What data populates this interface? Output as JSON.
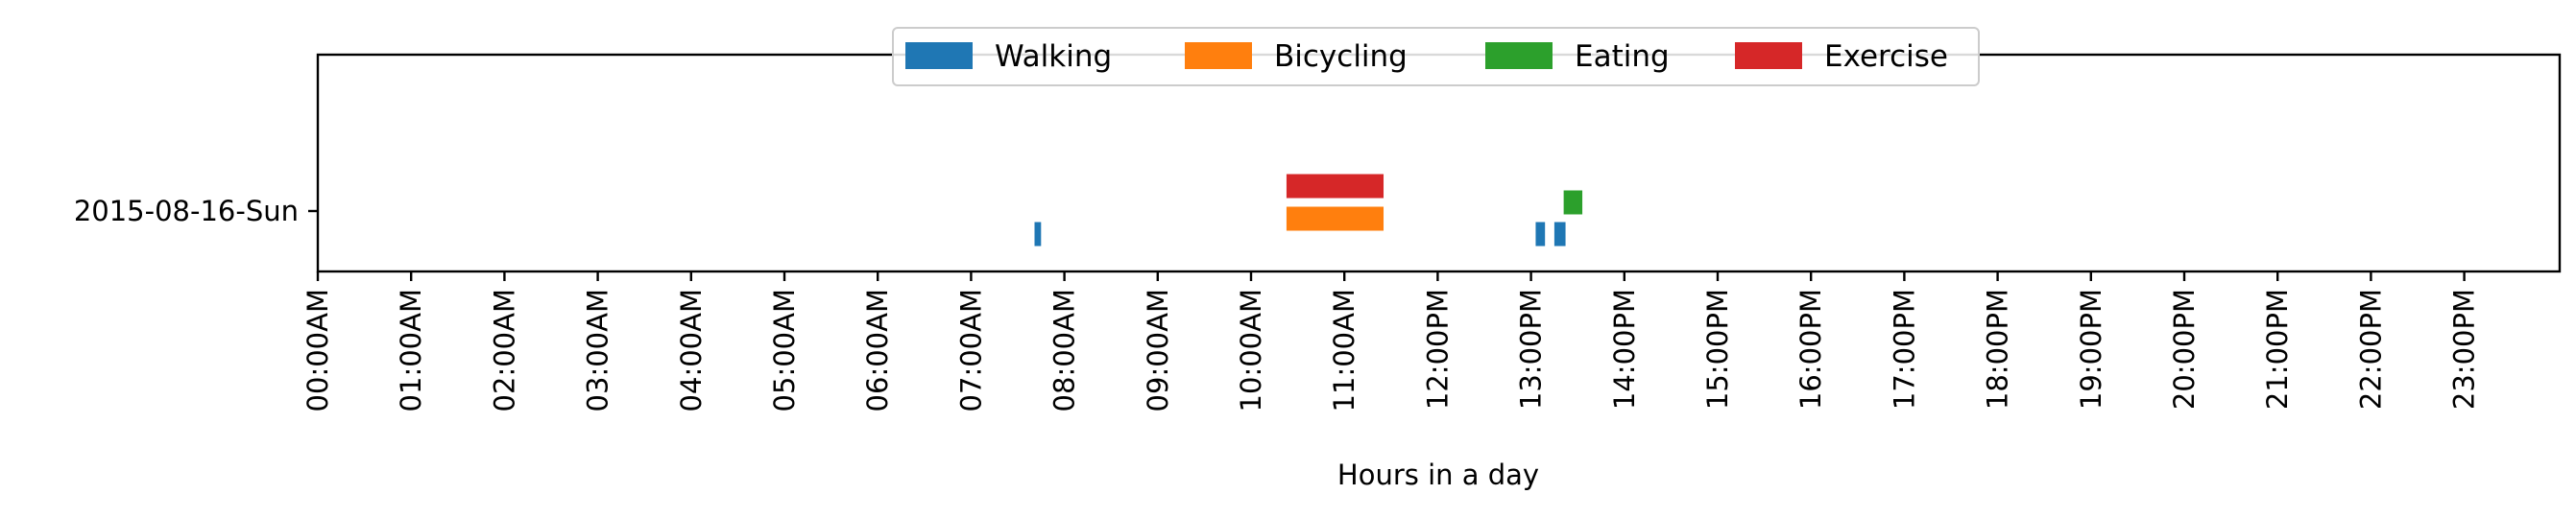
{
  "chart_data": {
    "type": "timeline",
    "xlabel": "Hours in a day",
    "ylabel": "",
    "title": "",
    "xlim": [
      0,
      24
    ],
    "x_ticks": [
      {
        "value": 0,
        "label": "00:00AM"
      },
      {
        "value": 1,
        "label": "01:00AM"
      },
      {
        "value": 2,
        "label": "02:00AM"
      },
      {
        "value": 3,
        "label": "03:00AM"
      },
      {
        "value": 4,
        "label": "04:00AM"
      },
      {
        "value": 5,
        "label": "05:00AM"
      },
      {
        "value": 6,
        "label": "06:00AM"
      },
      {
        "value": 7,
        "label": "07:00AM"
      },
      {
        "value": 8,
        "label": "08:00AM"
      },
      {
        "value": 9,
        "label": "09:00AM"
      },
      {
        "value": 10,
        "label": "10:00AM"
      },
      {
        "value": 11,
        "label": "11:00AM"
      },
      {
        "value": 12,
        "label": "12:00PM"
      },
      {
        "value": 13,
        "label": "13:00PM"
      },
      {
        "value": 14,
        "label": "14:00PM"
      },
      {
        "value": 15,
        "label": "15:00PM"
      },
      {
        "value": 16,
        "label": "16:00PM"
      },
      {
        "value": 17,
        "label": "17:00PM"
      },
      {
        "value": 18,
        "label": "18:00PM"
      },
      {
        "value": 19,
        "label": "19:00PM"
      },
      {
        "value": 20,
        "label": "20:00PM"
      },
      {
        "value": 21,
        "label": "21:00PM"
      },
      {
        "value": 22,
        "label": "22:00PM"
      },
      {
        "value": 23,
        "label": "23:00PM"
      }
    ],
    "categories": [
      "2015-08-16-Sun"
    ],
    "legend": "top-center",
    "grid": false,
    "series": [
      {
        "name": "Walking",
        "color": "#1f77b4",
        "lane": 0,
        "intervals": [
          [
            7.68,
            7.75
          ],
          [
            13.05,
            13.15
          ],
          [
            13.25,
            13.37
          ]
        ]
      },
      {
        "name": "Bicycling",
        "color": "#ff7f0e",
        "lane": 1,
        "intervals": [
          [
            10.38,
            11.42
          ]
        ]
      },
      {
        "name": "Eating",
        "color": "#2ca02c",
        "lane": 2,
        "intervals": [
          [
            13.35,
            13.55
          ]
        ]
      },
      {
        "name": "Exercise",
        "color": "#d62728",
        "lane": 3,
        "intervals": [
          [
            10.38,
            11.42
          ]
        ]
      }
    ]
  }
}
